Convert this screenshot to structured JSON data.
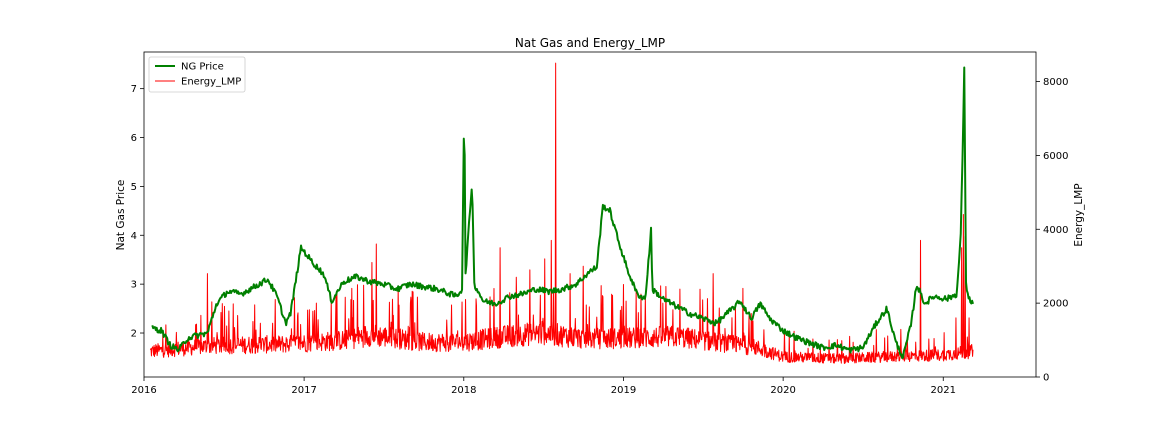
{
  "chart_data": {
    "type": "line",
    "title": "Nat Gas and Energy_LMP",
    "xlabel": "",
    "ylabel_left": "Nat Gas Price",
    "ylabel_right": "Energy_LMP",
    "xlim": [
      "2016-01-01",
      "2021-08-01"
    ],
    "ylim_left": [
      1.1,
      7.75
    ],
    "ylim_right": [
      0,
      8800
    ],
    "x_ticks": [
      "2016-01-01",
      "2017-01-01",
      "2018-01-01",
      "2019-01-01",
      "2020-01-01",
      "2021-01-01"
    ],
    "x_tick_labels": [
      "2016",
      "2017",
      "2018",
      "2019",
      "2020",
      "2021"
    ],
    "y_left_ticks": [
      2,
      3,
      4,
      5,
      6,
      7
    ],
    "y_left_tick_labels": [
      "2",
      "3",
      "4",
      "5",
      "6",
      "7"
    ],
    "y_right_ticks": [
      0,
      2000,
      4000,
      6000,
      8000
    ],
    "y_right_tick_labels": [
      "0",
      "2000",
      "4000",
      "6000",
      "8000"
    ],
    "grid": false,
    "legend": "top-left",
    "series": [
      {
        "name": "NG Price",
        "axis": "left",
        "color": "#008000",
        "points": [
          [
            "2016-01-20",
            2.1
          ],
          [
            "2016-02-10",
            2.05
          ],
          [
            "2016-03-01",
            1.75
          ],
          [
            "2016-03-20",
            1.65
          ],
          [
            "2016-04-10",
            1.9
          ],
          [
            "2016-05-01",
            1.95
          ],
          [
            "2016-05-25",
            2.0
          ],
          [
            "2016-06-15",
            2.6
          ],
          [
            "2016-07-10",
            2.85
          ],
          [
            "2016-08-10",
            2.8
          ],
          [
            "2016-09-10",
            2.95
          ],
          [
            "2016-10-10",
            3.1
          ],
          [
            "2016-10-31",
            2.75
          ],
          [
            "2016-11-20",
            2.2
          ],
          [
            "2016-12-01",
            2.4
          ],
          [
            "2016-12-25",
            3.75
          ],
          [
            "2017-01-20",
            3.45
          ],
          [
            "2017-02-15",
            3.2
          ],
          [
            "2017-03-05",
            2.65
          ],
          [
            "2017-04-01",
            3.05
          ],
          [
            "2017-05-01",
            3.15
          ],
          [
            "2017-06-01",
            3.05
          ],
          [
            "2017-07-01",
            3.0
          ],
          [
            "2017-08-01",
            2.9
          ],
          [
            "2017-09-01",
            3.0
          ],
          [
            "2017-10-01",
            2.95
          ],
          [
            "2017-11-01",
            2.9
          ],
          [
            "2017-12-15",
            2.75
          ],
          [
            "2017-12-28",
            2.9
          ],
          [
            "2018-01-02",
            6.8
          ],
          [
            "2018-01-05",
            3.2
          ],
          [
            "2018-01-20",
            5.1
          ],
          [
            "2018-01-25",
            3.0
          ],
          [
            "2018-02-15",
            2.65
          ],
          [
            "2018-03-15",
            2.6
          ],
          [
            "2018-04-15",
            2.75
          ],
          [
            "2018-05-15",
            2.8
          ],
          [
            "2018-06-15",
            2.9
          ],
          [
            "2018-07-15",
            2.85
          ],
          [
            "2018-08-15",
            2.9
          ],
          [
            "2018-09-15",
            3.0
          ],
          [
            "2018-10-15",
            3.25
          ],
          [
            "2018-11-01",
            3.35
          ],
          [
            "2018-11-15",
            4.6
          ],
          [
            "2018-12-01",
            4.5
          ],
          [
            "2018-12-20",
            3.9
          ],
          [
            "2019-01-10",
            3.3
          ],
          [
            "2019-02-01",
            2.8
          ],
          [
            "2019-02-20",
            2.7
          ],
          [
            "2019-03-05",
            4.1
          ],
          [
            "2019-03-08",
            2.9
          ],
          [
            "2019-04-01",
            2.7
          ],
          [
            "2019-05-01",
            2.55
          ],
          [
            "2019-06-01",
            2.4
          ],
          [
            "2019-07-01",
            2.3
          ],
          [
            "2019-08-01",
            2.2
          ],
          [
            "2019-09-01",
            2.45
          ],
          [
            "2019-09-25",
            2.65
          ],
          [
            "2019-10-20",
            2.3
          ],
          [
            "2019-11-10",
            2.6
          ],
          [
            "2019-12-01",
            2.3
          ],
          [
            "2020-01-01",
            2.05
          ],
          [
            "2020-02-01",
            1.9
          ],
          [
            "2020-03-01",
            1.8
          ],
          [
            "2020-04-01",
            1.7
          ],
          [
            "2020-05-01",
            1.75
          ],
          [
            "2020-06-01",
            1.65
          ],
          [
            "2020-07-01",
            1.7
          ],
          [
            "2020-08-01",
            2.2
          ],
          [
            "2020-08-25",
            2.5
          ],
          [
            "2020-09-15",
            1.8
          ],
          [
            "2020-10-01",
            1.5
          ],
          [
            "2020-10-20",
            2.2
          ],
          [
            "2020-11-01",
            3.0
          ],
          [
            "2020-11-20",
            2.6
          ],
          [
            "2020-12-10",
            2.75
          ],
          [
            "2021-01-10",
            2.7
          ],
          [
            "2021-02-01",
            2.8
          ],
          [
            "2021-02-10",
            4.0
          ],
          [
            "2021-02-15",
            6.0
          ],
          [
            "2021-02-18",
            7.45
          ],
          [
            "2021-02-22",
            3.0
          ],
          [
            "2021-03-01",
            2.7
          ],
          [
            "2021-03-10",
            2.6
          ]
        ]
      },
      {
        "name": "Energy_LMP",
        "axis": "right",
        "color": "#ff0000",
        "baseline": [
          [
            "2016-01-15",
            700
          ],
          [
            "2016-06-01",
            850
          ],
          [
            "2016-12-01",
            900
          ],
          [
            "2017-04-01",
            1000
          ],
          [
            "2017-06-01",
            1150
          ],
          [
            "2017-10-01",
            950
          ],
          [
            "2018-01-01",
            950
          ],
          [
            "2018-04-01",
            1100
          ],
          [
            "2018-07-01",
            1200
          ],
          [
            "2018-10-01",
            1050
          ],
          [
            "2019-01-01",
            1050
          ],
          [
            "2019-05-01",
            1100
          ],
          [
            "2019-08-01",
            950
          ],
          [
            "2019-11-01",
            800
          ],
          [
            "2020-01-01",
            550
          ],
          [
            "2020-05-01",
            500
          ],
          [
            "2020-09-01",
            550
          ],
          [
            "2021-01-01",
            600
          ],
          [
            "2021-03-10",
            700
          ]
        ],
        "spikes": [
          [
            "2016-05-25",
            2800
          ],
          [
            "2017-01-25",
            1800
          ],
          [
            "2017-04-20",
            2400
          ],
          [
            "2017-06-05",
            3100
          ],
          [
            "2017-06-15",
            3600
          ],
          [
            "2017-09-01",
            2000
          ],
          [
            "2018-01-05",
            2100
          ],
          [
            "2018-03-25",
            3500
          ],
          [
            "2018-06-01",
            2900
          ],
          [
            "2018-07-05",
            3200
          ],
          [
            "2018-07-20",
            3700
          ],
          [
            "2018-07-30",
            8500
          ],
          [
            "2018-09-01",
            2800
          ],
          [
            "2018-10-01",
            3000
          ],
          [
            "2019-02-20",
            2200
          ],
          [
            "2019-04-01",
            2000
          ],
          [
            "2019-07-25",
            2800
          ],
          [
            "2019-10-01",
            2400
          ],
          [
            "2020-01-15",
            1200
          ],
          [
            "2020-06-01",
            1100
          ],
          [
            "2020-11-10",
            3700
          ],
          [
            "2021-01-30",
            1600
          ],
          [
            "2021-02-12",
            3500
          ],
          [
            "2021-02-16",
            4400
          ],
          [
            "2021-02-20",
            3800
          ],
          [
            "2021-03-01",
            1600
          ]
        ]
      }
    ]
  }
}
